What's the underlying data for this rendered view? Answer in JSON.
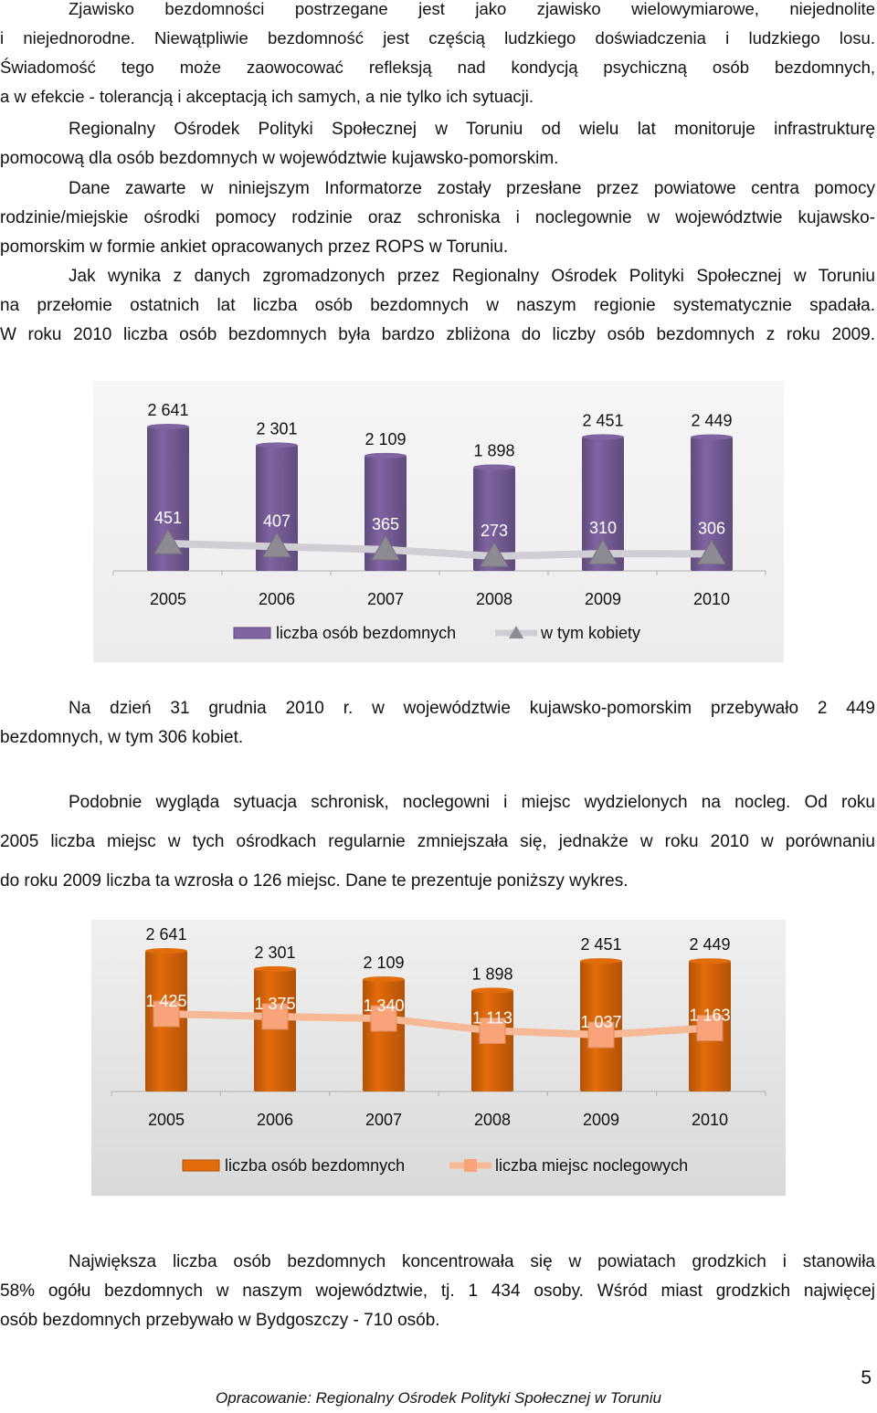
{
  "paragraphs": [
    {
      "lines": [
        "Zjawisko bezdomności postrzegane jest jako zjawisko wielowymiarowe, niejednolite",
        "i niejednorodne. Niewątpliwie bezdomność jest częścią ludzkiego doświadczenia i ludzkiego losu.",
        "Świadomość tego może zaowocować refleksją nad kondycją psychiczną osób bezdomnych,",
        "a w efekcie - tolerancją i akceptacją ich samych, a nie tylko ich sytuacji."
      ]
    },
    {
      "lines": [
        "Regionalny Ośrodek Polityki Społecznej w Toruniu od wielu lat monitoruje infrastrukturę",
        "pomocową dla osób bezdomnych w województwie kujawsko-pomorskim."
      ]
    },
    {
      "lines": [
        "Dane zawarte w niniejszym Informatorze zostały przesłane przez powiatowe centra pomocy",
        "rodzinie/miejskie ośrodki pomocy rodzinie oraz schroniska i noclegownie w województwie kujawsko-",
        "pomorskim w formie ankiet opracowanych przez ROPS  w Toruniu."
      ]
    },
    {
      "lines": [
        "Jak wynika z danych zgromadzonych przez Regionalny Ośrodek Polityki Społecznej w Toruniu",
        "na przełomie ostatnich lat liczba osób bezdomnych w naszym regionie systematycznie spadała.",
        "W roku 2010 liczba osób bezdomnych była bardzo zbliżona do liczby osób bezdomnych z roku 2009."
      ]
    },
    {
      "lines": [
        "Na dzień 31 grudnia 2010 r. w województwie kujawsko-pomorskim przebywało 2 449",
        "bezdomnych, w tym 306 kobiet."
      ]
    },
    {
      "lines": [
        "Podobnie wygląda sytuacja schronisk, noclegowni i miejsc wydzielonych na nocleg. Od roku",
        "2005 liczba miejsc w tych ośrodkach regularnie zmniejszała się,  jednakże w roku 2010 w porównaniu",
        "do roku 2009 liczba ta wzrosła o 126 miejsc. Dane te prezentuje poniższy wykres."
      ]
    },
    {
      "lines": [
        "Największa liczba osób bezdomnych koncentrowała się w powiatach grodzkich i stanowiła",
        "58% ogółu bezdomnych w naszym województwie, tj. 1 434 osoby. Wśród miast grodzkich najwięcej",
        "osób bezdomnych przebywało w Bydgoszczy - 710 osób."
      ]
    }
  ],
  "chart_data": [
    {
      "type": "bar",
      "categories": [
        "2005",
        "2006",
        "2007",
        "2008",
        "2009",
        "2010"
      ],
      "series": [
        {
          "name": "liczba osób bezdomnych",
          "type": "bar",
          "values": [
            2641,
            2301,
            2109,
            1898,
            2451,
            2449
          ],
          "labels": [
            "2 641",
            "2 301",
            "2 109",
            "1 898",
            "2 451",
            "2 449"
          ]
        },
        {
          "name": "w tym kobiety",
          "type": "line",
          "values": [
            451,
            407,
            365,
            273,
            310,
            306
          ],
          "labels": [
            "451",
            "407",
            "365",
            "273",
            "310",
            "306"
          ]
        }
      ],
      "ylim": [
        0,
        2641
      ],
      "grid": false,
      "legend": "bottom",
      "colors": {
        "bar": "#8064a2",
        "bar_dark": "#5f4b7c",
        "line": "#d0cdd5",
        "marker": "#8d8a93",
        "background": "#ececec"
      }
    },
    {
      "type": "bar",
      "categories": [
        "2005",
        "2006",
        "2007",
        "2008",
        "2009",
        "2010"
      ],
      "series": [
        {
          "name": "liczba osób bezdomnych",
          "type": "bar",
          "values": [
            2641,
            2301,
            2109,
            1898,
            2451,
            2449
          ],
          "labels": [
            "2 641",
            "2 301",
            "2 109",
            "1 898",
            "2 451",
            "2 449"
          ]
        },
        {
          "name": "liczba miejsc noclegowych",
          "type": "line",
          "values": [
            1425,
            1375,
            1340,
            1113,
            1037,
            1163
          ],
          "labels": [
            "1 425",
            "1 375",
            "1 340",
            "1 113",
            "1 037",
            "1 163"
          ]
        }
      ],
      "ylim": [
        0,
        2641
      ],
      "grid": false,
      "legend": "bottom",
      "colors": {
        "bar": "#e36c0a",
        "bar_dark": "#b35208",
        "line": "#f7b896",
        "marker": "#f9a37a",
        "background": "#d9d9d9"
      }
    }
  ],
  "footer": "Opracowanie: Regionalny Ośrodek Polityki Społecznej w Toruniu",
  "page_number": "5"
}
